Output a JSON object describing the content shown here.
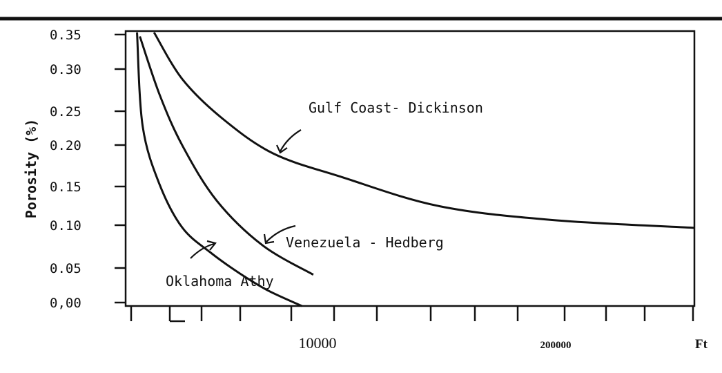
{
  "chart_data": {
    "type": "line",
    "title": "",
    "ylabel": "Porosity (%)",
    "xlabel": "",
    "y_ticks": [
      "0.35",
      "0.30",
      "0.25",
      "0.20",
      "0.15",
      "0.10",
      "0.05",
      "0,00"
    ],
    "x_ticks": [
      "10000",
      "200000",
      "Ft"
    ],
    "ylim": [
      0,
      0.35
    ],
    "grid": false,
    "series": [
      {
        "name": "Gulf Coast- Dickinson",
        "points": [
          [
            0.05,
            0.35
          ],
          [
            0.1,
            0.29
          ],
          [
            0.17,
            0.24
          ],
          [
            0.26,
            0.195
          ],
          [
            0.38,
            0.165
          ],
          [
            0.55,
            0.128
          ],
          [
            0.75,
            0.11
          ],
          [
            1.0,
            0.1
          ]
        ]
      },
      {
        "name": "Venezuela - Hedberg",
        "points": [
          [
            0.025,
            0.345
          ],
          [
            0.06,
            0.27
          ],
          [
            0.1,
            0.205
          ],
          [
            0.16,
            0.135
          ],
          [
            0.24,
            0.078
          ],
          [
            0.33,
            0.04
          ]
        ]
      },
      {
        "name": "Oklahoma Athy",
        "points": [
          [
            0.02,
            0.35
          ],
          [
            0.03,
            0.23
          ],
          [
            0.06,
            0.155
          ],
          [
            0.1,
            0.1
          ],
          [
            0.15,
            0.068
          ],
          [
            0.2,
            0.042
          ],
          [
            0.25,
            0.02
          ],
          [
            0.31,
            0.0
          ]
        ]
      }
    ]
  }
}
